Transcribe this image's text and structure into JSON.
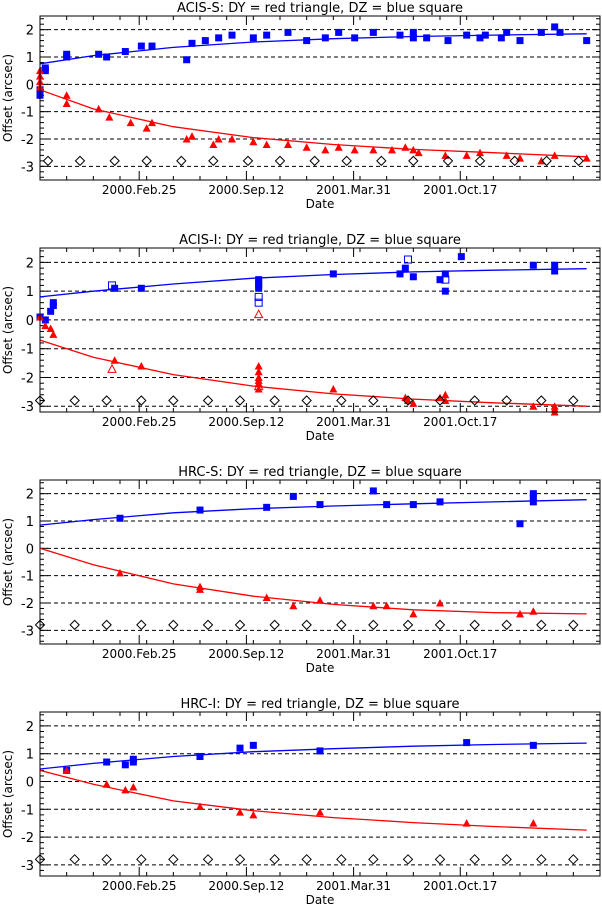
{
  "chart_data": [
    {
      "type": "scatter",
      "title": "ACIS-S: DY = red triangle, DZ = blue square",
      "xlabel": "Date",
      "ylabel": "Offset (arcsec)",
      "ylim": [
        -3.5,
        2.5
      ],
      "yticks": [
        -3,
        -2,
        -1,
        0,
        1,
        2
      ],
      "xticks": [
        "2000.Feb.25",
        "2000.Sep.12",
        "2001.Mar.31",
        "2001.Oct.17"
      ],
      "grid": "horizontal dashed at integer offsets",
      "series": [
        {
          "name": "DZ",
          "marker": "filled-square",
          "color": "#0000ff",
          "x": [
            0.0,
            0.0,
            0.0,
            0.02,
            0.02,
            0.1,
            0.1,
            0.22,
            0.25,
            0.32,
            0.38,
            0.42,
            0.55,
            0.57,
            0.62,
            0.67,
            0.72,
            0.8,
            0.85,
            0.93,
            1.0,
            1.07,
            1.12,
            1.18,
            1.25,
            1.35,
            1.4,
            1.4,
            1.45,
            1.53,
            1.6,
            1.65,
            1.67,
            1.73,
            1.75,
            1.8,
            1.88,
            1.93,
            1.95,
            2.05
          ],
          "y": [
            -0.4,
            -0.3,
            -0.2,
            0.5,
            0.6,
            1.0,
            1.1,
            1.1,
            1.0,
            1.2,
            1.4,
            1.4,
            0.9,
            1.5,
            1.6,
            1.7,
            1.8,
            1.7,
            1.8,
            1.9,
            1.6,
            1.7,
            1.9,
            1.7,
            1.9,
            1.8,
            1.7,
            1.9,
            1.7,
            1.6,
            1.8,
            1.7,
            1.8,
            1.7,
            1.9,
            1.6,
            1.9,
            2.1,
            1.9,
            1.6
          ]
        },
        {
          "name": "DY",
          "marker": "filled-triangle",
          "color": "#ff0000",
          "x": [
            0.0,
            0.0,
            0.0,
            0.0,
            0.1,
            0.1,
            0.22,
            0.26,
            0.34,
            0.4,
            0.42,
            0.55,
            0.57,
            0.65,
            0.67,
            0.72,
            0.8,
            0.85,
            0.93,
            1.0,
            1.07,
            1.12,
            1.18,
            1.25,
            1.32,
            1.37,
            1.4,
            1.42,
            1.52,
            1.6,
            1.65,
            1.75,
            1.8,
            1.88,
            1.93,
            2.05
          ],
          "y": [
            0.5,
            0.3,
            0.1,
            -0.1,
            -0.4,
            -0.7,
            -0.9,
            -1.2,
            -1.4,
            -1.6,
            -1.4,
            -2.0,
            -1.9,
            -2.2,
            -2.0,
            -2.0,
            -2.1,
            -2.2,
            -2.2,
            -2.3,
            -2.4,
            -2.3,
            -2.4,
            -2.4,
            -2.4,
            -2.3,
            -2.4,
            -2.5,
            -2.6,
            -2.6,
            -2.5,
            -2.6,
            -2.7,
            -2.8,
            -2.6,
            -2.7
          ]
        },
        {
          "name": "",
          "marker": "open-diamond",
          "color": "#000000",
          "x": [
            0.03,
            0.15,
            0.28,
            0.4,
            0.53,
            0.65,
            0.78,
            0.9,
            1.03,
            1.15,
            1.28,
            1.4,
            1.53,
            1.65,
            1.78,
            1.9,
            2.02
          ],
          "y": [
            -2.8,
            -2.8,
            -2.8,
            -2.8,
            -2.8,
            -2.8,
            -2.8,
            -2.8,
            -2.8,
            -2.8,
            -2.8,
            -2.8,
            -2.8,
            -2.8,
            -2.8,
            -2.8,
            -2.8
          ]
        }
      ],
      "fits": [
        {
          "series": "DZ",
          "color": "#0000ff",
          "x": [
            0.0,
            0.2,
            0.5,
            0.8,
            1.1,
            1.4,
            1.7,
            2.05
          ],
          "y": [
            0.75,
            1.05,
            1.35,
            1.55,
            1.67,
            1.75,
            1.8,
            1.85
          ]
        },
        {
          "series": "DY",
          "color": "#ff0000",
          "x": [
            0.0,
            0.2,
            0.5,
            0.8,
            1.1,
            1.4,
            1.7,
            2.05
          ],
          "y": [
            -0.2,
            -0.9,
            -1.55,
            -1.95,
            -2.2,
            -2.38,
            -2.5,
            -2.65
          ]
        }
      ]
    },
    {
      "type": "scatter",
      "title": "ACIS-I: DY = red triangle, DZ = blue square",
      "xlabel": "Date",
      "ylabel": "Offset (arcsec)",
      "ylim": [
        -3.2,
        2.5
      ],
      "yticks": [
        -3,
        -2,
        -1,
        0,
        1,
        2
      ],
      "xticks": [
        "2000.Feb.25",
        "2000.Sep.12",
        "2001.Mar.31",
        "2001.Oct.17"
      ],
      "grid": "horizontal dashed at integer offsets",
      "series": [
        {
          "name": "DZ",
          "marker": "filled-square",
          "color": "#0000ff",
          "x": [
            0.0,
            0.02,
            0.04,
            0.05,
            0.05,
            0.28,
            0.38,
            0.82,
            0.82,
            0.82,
            0.82,
            1.1,
            1.35,
            1.37,
            1.4,
            1.5,
            1.52,
            1.52,
            1.58,
            1.85,
            1.93,
            1.93
          ],
          "y": [
            0.1,
            0.0,
            0.3,
            0.5,
            0.6,
            1.1,
            1.1,
            1.1,
            1.2,
            1.3,
            1.4,
            1.6,
            1.6,
            1.8,
            1.5,
            1.4,
            1.6,
            1.0,
            2.2,
            1.9,
            1.7,
            1.9
          ]
        },
        {
          "name": "DZ",
          "marker": "open-square",
          "color": "#0000ff",
          "x": [
            0.27,
            0.82,
            0.82,
            1.38,
            1.52
          ],
          "y": [
            1.2,
            0.6,
            0.8,
            2.1,
            1.4
          ]
        },
        {
          "name": "DY",
          "marker": "filled-triangle",
          "color": "#ff0000",
          "x": [
            0.0,
            0.02,
            0.04,
            0.05,
            0.28,
            0.38,
            0.82,
            0.82,
            0.82,
            0.82,
            0.82,
            0.82,
            1.1,
            1.37,
            1.38,
            1.4,
            1.5,
            1.52,
            1.52,
            1.85,
            1.93,
            1.93,
            1.93
          ],
          "y": [
            0.1,
            -0.2,
            -0.3,
            -0.5,
            -1.4,
            -1.6,
            -1.6,
            -1.8,
            -2.0,
            -2.1,
            -2.2,
            -2.4,
            -2.4,
            -2.7,
            -2.8,
            -2.9,
            -2.7,
            -2.8,
            -2.6,
            -3.0,
            -3.0,
            -3.1,
            -3.2
          ]
        },
        {
          "name": "DY",
          "marker": "open-triangle",
          "color": "#ff0000",
          "x": [
            0.27,
            0.82,
            0.82
          ],
          "y": [
            -1.7,
            0.2,
            -2.3
          ]
        },
        {
          "name": "",
          "marker": "open-diamond",
          "color": "#000000",
          "x": [
            0.0,
            0.13,
            0.25,
            0.38,
            0.5,
            0.63,
            0.75,
            0.88,
            1.0,
            1.13,
            1.25,
            1.38,
            1.5,
            1.63,
            1.75,
            1.88,
            2.0
          ],
          "y": [
            -2.8,
            -2.8,
            -2.8,
            -2.8,
            -2.8,
            -2.8,
            -2.8,
            -2.8,
            -2.8,
            -2.8,
            -2.8,
            -2.8,
            -2.8,
            -2.8,
            -2.8,
            -2.8,
            -2.8
          ]
        }
      ],
      "fits": [
        {
          "series": "DZ",
          "color": "#0000ff",
          "x": [
            0.0,
            0.2,
            0.5,
            0.8,
            1.1,
            1.4,
            1.7,
            2.05
          ],
          "y": [
            0.8,
            1.0,
            1.25,
            1.45,
            1.58,
            1.67,
            1.73,
            1.78
          ]
        },
        {
          "series": "DY",
          "color": "#ff0000",
          "x": [
            0.0,
            0.2,
            0.5,
            0.8,
            1.1,
            1.4,
            1.7,
            2.05
          ],
          "y": [
            -0.7,
            -1.3,
            -1.9,
            -2.3,
            -2.57,
            -2.75,
            -2.88,
            -3.0
          ]
        }
      ]
    },
    {
      "type": "scatter",
      "title": "HRC-S: DY = red triangle, DZ = blue square",
      "xlabel": "Date",
      "ylabel": "Offset (arcsec)",
      "ylim": [
        -3.5,
        2.5
      ],
      "yticks": [
        -3,
        -2,
        -1,
        0,
        1,
        2
      ],
      "xticks": [
        "2000.Feb.25",
        "2000.Sep.12",
        "2001.Mar.31",
        "2001.Oct.17"
      ],
      "grid": "horizontal dashed at integer offsets",
      "series": [
        {
          "name": "DZ",
          "marker": "filled-square",
          "color": "#0000ff",
          "x": [
            0.3,
            0.6,
            0.85,
            0.95,
            1.05,
            1.25,
            1.3,
            1.4,
            1.5,
            1.8,
            1.85,
            1.85,
            1.85
          ],
          "y": [
            1.1,
            1.4,
            1.5,
            1.9,
            1.6,
            2.1,
            1.6,
            1.6,
            1.7,
            0.9,
            1.7,
            1.9,
            2.0
          ]
        },
        {
          "name": "DY",
          "marker": "filled-triangle",
          "color": "#ff0000",
          "x": [
            0.3,
            0.6,
            0.6,
            0.85,
            0.95,
            1.05,
            1.25,
            1.3,
            1.4,
            1.5,
            1.8,
            1.85
          ],
          "y": [
            -0.9,
            -1.5,
            -1.4,
            -1.8,
            -2.1,
            -1.9,
            -2.1,
            -2.1,
            -2.4,
            -2.0,
            -2.4,
            -2.3
          ]
        },
        {
          "name": "",
          "marker": "open-diamond",
          "color": "#000000",
          "x": [
            0.0,
            0.13,
            0.25,
            0.38,
            0.5,
            0.63,
            0.75,
            0.88,
            1.0,
            1.13,
            1.25,
            1.38,
            1.5,
            1.63,
            1.75,
            1.88,
            2.0
          ],
          "y": [
            -2.8,
            -2.8,
            -2.8,
            -2.8,
            -2.8,
            -2.8,
            -2.8,
            -2.8,
            -2.8,
            -2.8,
            -2.8,
            -2.8,
            -2.8,
            -2.8,
            -2.8,
            -2.8,
            -2.8
          ]
        }
      ],
      "fits": [
        {
          "series": "DZ",
          "color": "#0000ff",
          "x": [
            0.0,
            0.2,
            0.5,
            0.8,
            1.1,
            1.4,
            1.7,
            2.05
          ],
          "y": [
            0.85,
            1.05,
            1.3,
            1.45,
            1.55,
            1.63,
            1.7,
            1.78
          ]
        },
        {
          "series": "DY",
          "color": "#ff0000",
          "x": [
            0.0,
            0.2,
            0.5,
            0.8,
            1.1,
            1.4,
            1.7,
            2.05
          ],
          "y": [
            0.0,
            -0.6,
            -1.3,
            -1.75,
            -2.05,
            -2.25,
            -2.35,
            -2.4
          ]
        }
      ]
    },
    {
      "type": "scatter",
      "title": "HRC-I: DY = red triangle, DZ = blue square",
      "xlabel": "Date",
      "ylabel": "Offset (arcsec)",
      "ylim": [
        -3.4,
        2.5
      ],
      "yticks": [
        -3,
        -2,
        -1,
        0,
        1,
        2
      ],
      "xticks": [
        "2000.Feb.25",
        "2000.Sep.12",
        "2001.Mar.31",
        "2001.Oct.17"
      ],
      "grid": "horizontal dashed at integer offsets",
      "series": [
        {
          "name": "DZ",
          "marker": "filled-square",
          "color": "#0000ff",
          "x": [
            0.1,
            0.25,
            0.32,
            0.35,
            0.35,
            0.6,
            0.75,
            0.8,
            1.05,
            1.6,
            1.85
          ],
          "y": [
            0.4,
            0.7,
            0.6,
            0.7,
            0.8,
            0.9,
            1.2,
            1.3,
            1.1,
            1.4,
            1.3
          ]
        },
        {
          "name": "DY",
          "marker": "filled-triangle",
          "color": "#ff0000",
          "x": [
            0.1,
            0.25,
            0.32,
            0.35,
            0.6,
            0.75,
            0.8,
            1.05,
            1.6,
            1.85
          ],
          "y": [
            0.4,
            -0.1,
            -0.3,
            -0.2,
            -0.9,
            -1.1,
            -1.2,
            -1.1,
            -1.5,
            -1.5
          ]
        },
        {
          "name": "",
          "marker": "open-diamond",
          "color": "#000000",
          "x": [
            0.0,
            0.13,
            0.25,
            0.38,
            0.5,
            0.63,
            0.75,
            0.88,
            1.0,
            1.13,
            1.25,
            1.38,
            1.5,
            1.63,
            1.75,
            1.88,
            2.0
          ],
          "y": [
            -2.8,
            -2.8,
            -2.8,
            -2.8,
            -2.8,
            -2.8,
            -2.8,
            -2.8,
            -2.8,
            -2.8,
            -2.8,
            -2.8,
            -2.8,
            -2.8,
            -2.8,
            -2.8,
            -2.8
          ]
        }
      ],
      "fits": [
        {
          "series": "DZ",
          "color": "#0000ff",
          "x": [
            0.0,
            0.2,
            0.5,
            0.8,
            1.1,
            1.4,
            1.7,
            2.05
          ],
          "y": [
            0.45,
            0.65,
            0.9,
            1.07,
            1.18,
            1.27,
            1.33,
            1.38
          ]
        },
        {
          "series": "DY",
          "color": "#ff0000",
          "x": [
            0.0,
            0.2,
            0.5,
            0.8,
            1.1,
            1.4,
            1.7,
            2.05
          ],
          "y": [
            0.4,
            -0.1,
            -0.7,
            -1.05,
            -1.3,
            -1.48,
            -1.62,
            -1.75
          ]
        }
      ]
    }
  ]
}
